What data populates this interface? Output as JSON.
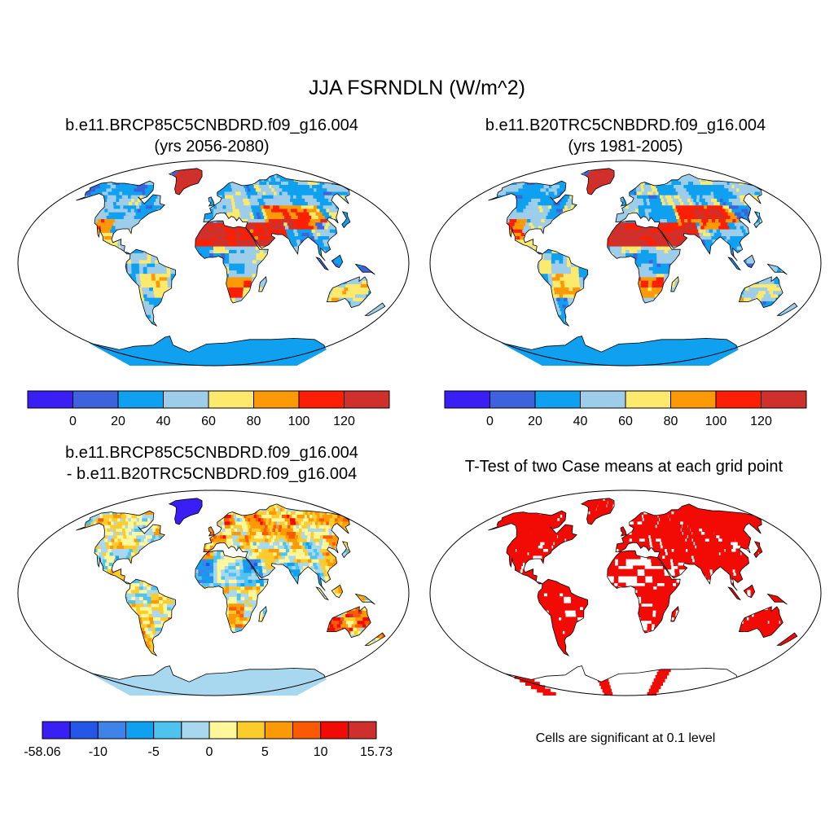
{
  "figure": {
    "title": "JJA FSRNDLN (W/m^2)"
  },
  "panels": [
    {
      "id": "case-mean",
      "title1": "b.e11.BRCP85C5CNBDRD.f09_g16.004",
      "title2": "(yrs 2056-2080)",
      "scheme": "absolute"
    },
    {
      "id": "control-mean",
      "title1": "b.e11.B20TRC5CNBDRD.f09_g16.004",
      "title2": "(yrs 1981-2005)",
      "scheme": "absolute"
    },
    {
      "id": "difference",
      "title1": "b.e11.BRCP85C5CNBDRD.f09_g16.004",
      "title2": "- b.e11.B20TRC5CNBDRD.f09_g16.004",
      "scheme": "difference"
    },
    {
      "id": "t-test",
      "title1": "T-Test of two Case means at each grid point",
      "note": "Cells are significant at 0.1 level",
      "scheme": "significance"
    }
  ],
  "colorbars": {
    "absolute": {
      "colors": [
        "#3a1ff5",
        "#3d62dc",
        "#10a0f0",
        "#9dcde9",
        "#fde96b",
        "#fb9a06",
        "#fb2005",
        "#d0302b"
      ],
      "labels": [
        "0",
        "20",
        "40",
        "60",
        "80",
        "100",
        "120"
      ]
    },
    "difference": {
      "colors": [
        "#3a1ff5",
        "#2456e8",
        "#3d83ea",
        "#10a0f0",
        "#4fc3f0",
        "#a8d8ef",
        "#fff79a",
        "#fccb2c",
        "#fb9a06",
        "#fb5a05",
        "#f20a05",
        "#d0302b"
      ],
      "labels": [
        "-58.06",
        "-10",
        "-5",
        "0",
        "5",
        "10",
        "15.73"
      ]
    },
    "significance": {
      "colors": [
        "#f20a05"
      ]
    }
  }
}
